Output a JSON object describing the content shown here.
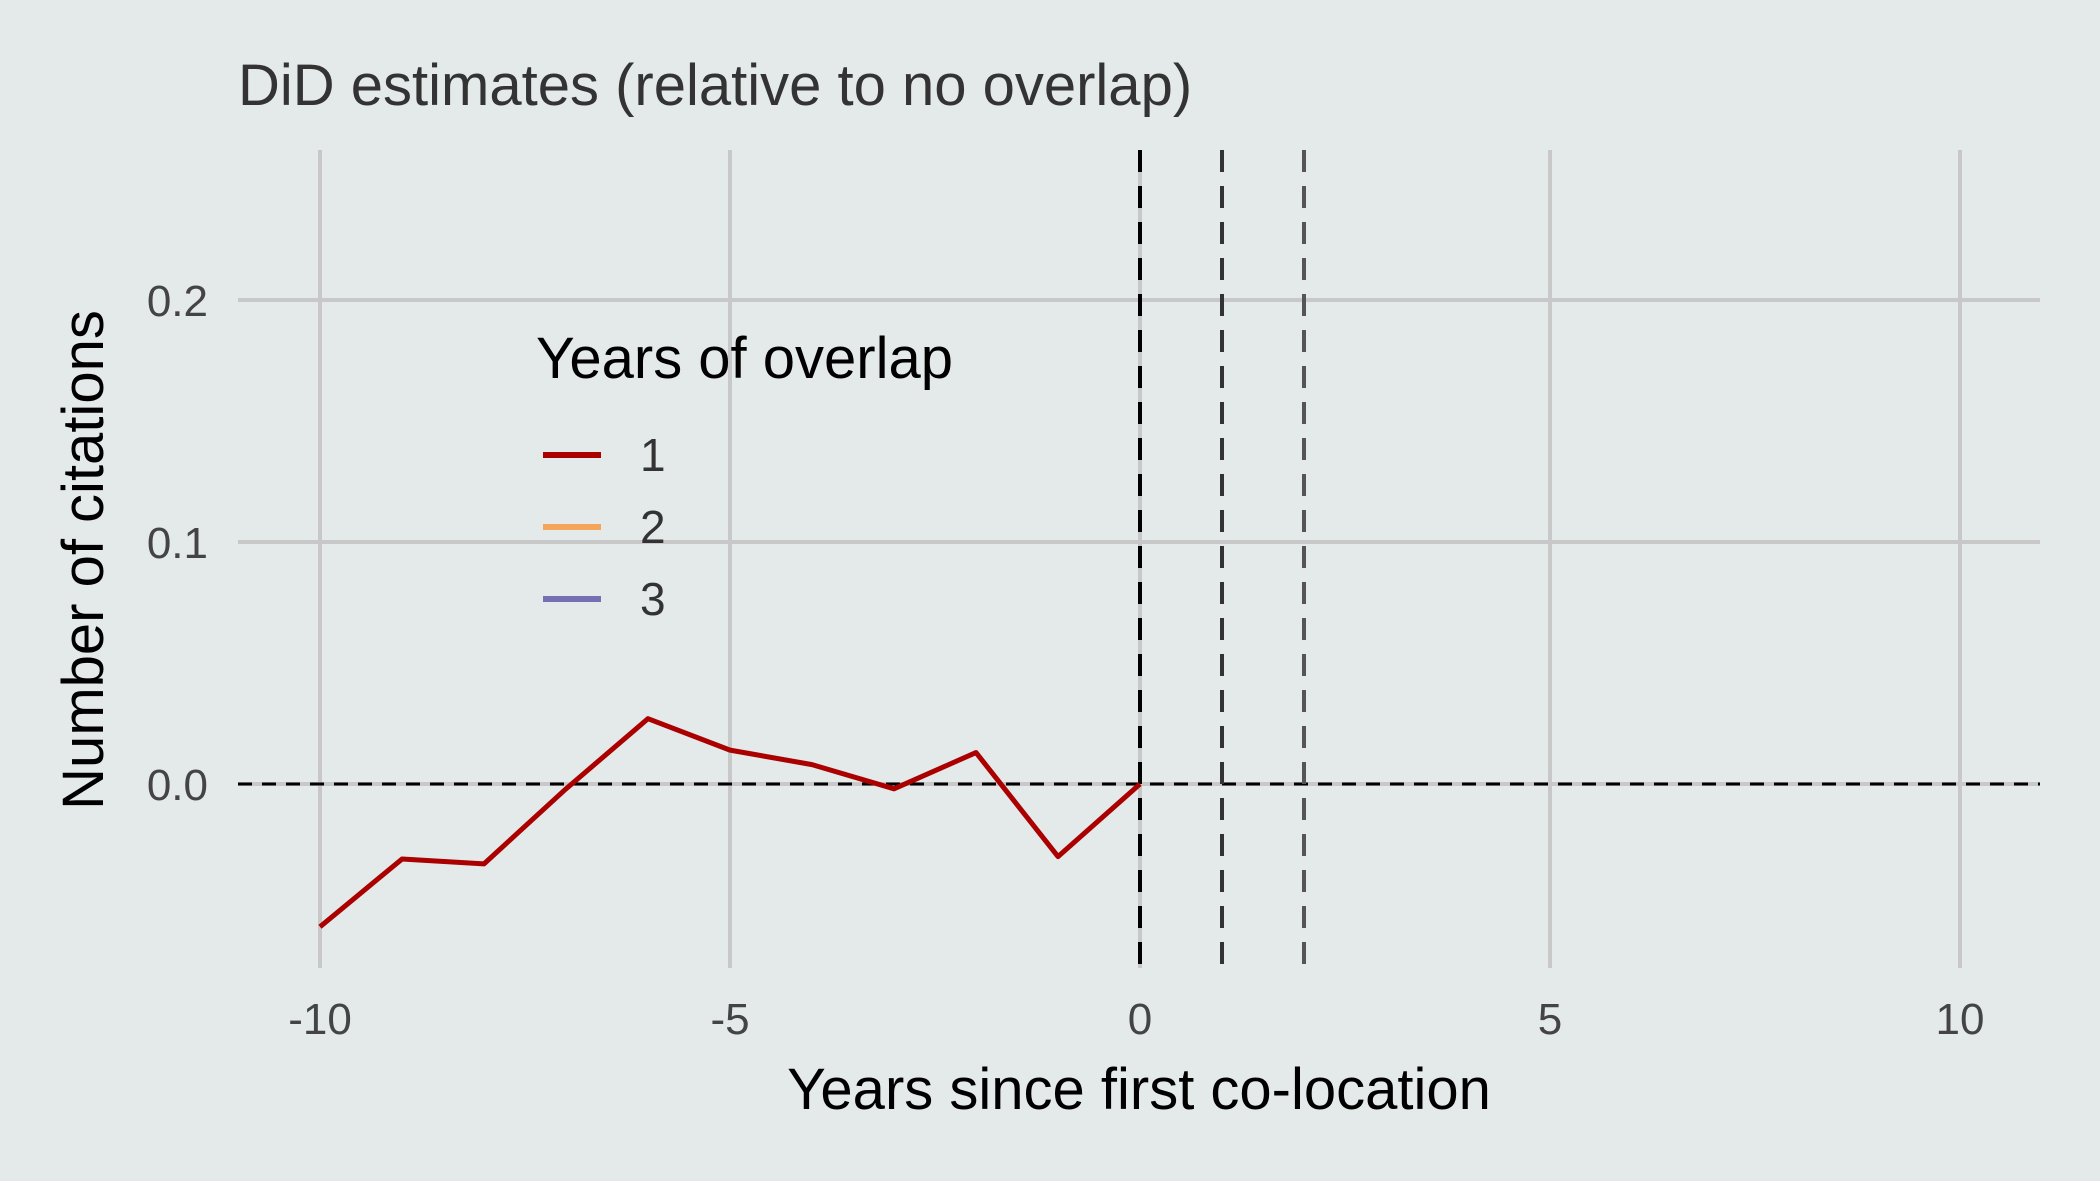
{
  "chart_data": {
    "type": "line",
    "title": "DiD estimates (relative to no overlap)",
    "xlabel": "Years since first co-location",
    "ylabel": "Number of citations",
    "xlim": [
      -11,
      11
    ],
    "ylim": [
      -0.075,
      0.26
    ],
    "x_ticks": [
      -10,
      -5,
      0,
      5,
      10
    ],
    "x_tick_labels": [
      "-10",
      "-5",
      "0",
      "5",
      "10"
    ],
    "y_ticks": [
      0.0,
      0.1,
      0.2
    ],
    "y_tick_labels": [
      "0.0",
      "0.1",
      "0.2"
    ],
    "grid": true,
    "legend": {
      "title": "Years of overlap",
      "position": "upper-left inside plot",
      "entries": [
        "1",
        "2",
        "3"
      ]
    },
    "reference_lines": {
      "horizontal_dashed_y": 0,
      "vertical_dashed_x": [
        0,
        1,
        2
      ]
    },
    "series": [
      {
        "name": "1",
        "color": "#aa0000",
        "x": [
          -10,
          -9,
          -8,
          -7,
          -6,
          -5,
          -4,
          -3,
          -2,
          -1,
          0
        ],
        "y": [
          -0.059,
          -0.031,
          -0.033,
          -0.002,
          0.027,
          0.014,
          0.008,
          -0.002,
          0.013,
          -0.03,
          0.0
        ]
      },
      {
        "name": "2",
        "color": "#f5a55a",
        "x": [],
        "y": []
      },
      {
        "name": "3",
        "color": "#7570b3",
        "x": [],
        "y": []
      }
    ]
  }
}
